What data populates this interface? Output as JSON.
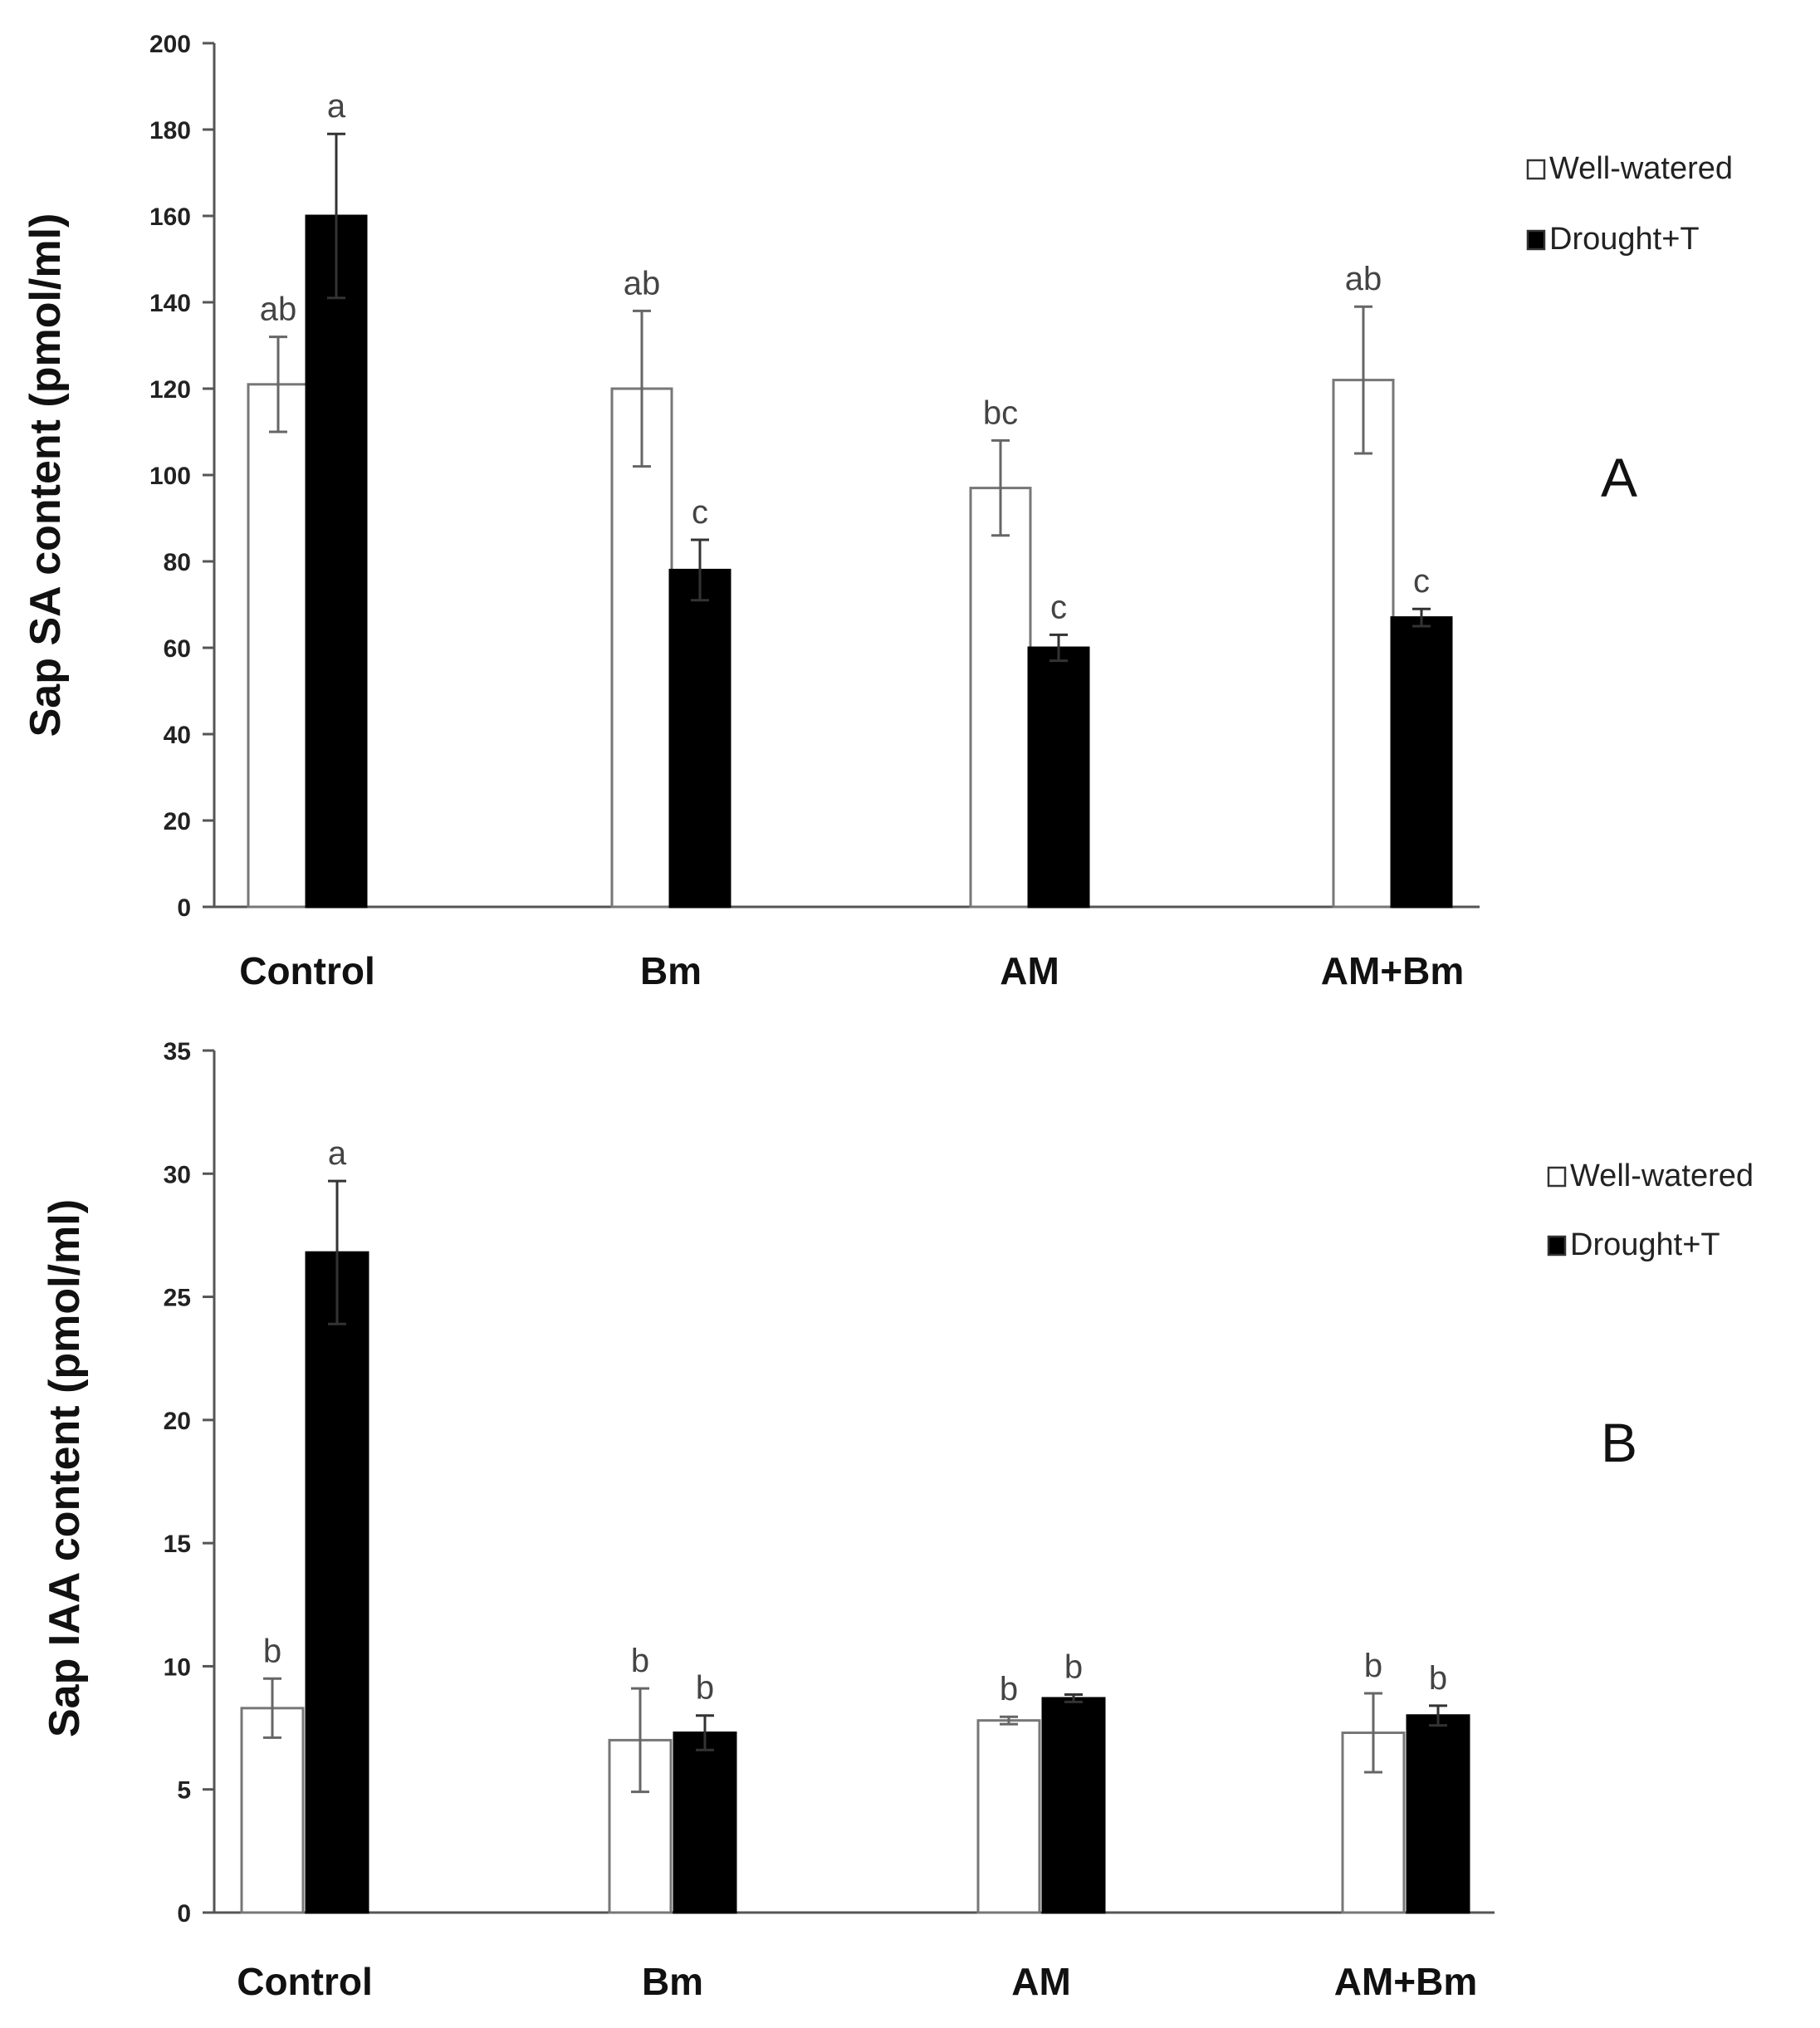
{
  "chart_data": [
    {
      "type": "bar",
      "panel_label": "A",
      "categories": [
        "Control",
        "Bm",
        "AM",
        "AM+Bm"
      ],
      "ylabel": "Sap SA content (pmol/ml)",
      "ylim": [
        0,
        200
      ],
      "yticks": [
        0,
        20,
        40,
        60,
        80,
        100,
        120,
        140,
        160,
        180,
        200
      ],
      "legend_position": "top-right",
      "series": [
        {
          "name": "Well-watered",
          "color": "#ffffff",
          "values": [
            121,
            120,
            97,
            122
          ],
          "errors": [
            11,
            18,
            11,
            17
          ],
          "letters": [
            "ab",
            "ab",
            "bc",
            "ab"
          ]
        },
        {
          "name": "Drought+T",
          "color": "#000000",
          "values": [
            160,
            78,
            60,
            67
          ],
          "errors": [
            19,
            7,
            3,
            2
          ],
          "letters": [
            "a",
            "c",
            "c",
            "c"
          ]
        }
      ]
    },
    {
      "type": "bar",
      "panel_label": "B",
      "categories": [
        "Control",
        "Bm",
        "AM",
        "AM+Bm"
      ],
      "ylabel": "Sap IAA content (pmol/ml)",
      "ylim": [
        0,
        35
      ],
      "yticks": [
        0,
        5,
        10,
        15,
        20,
        25,
        30,
        35
      ],
      "legend_position": "top-right",
      "series": [
        {
          "name": "Well-watered",
          "color": "#ffffff",
          "values": [
            8.3,
            7.0,
            7.8,
            7.3
          ],
          "errors": [
            1.2,
            2.1,
            0.15,
            1.6
          ],
          "letters": [
            "b",
            "b",
            "b",
            "b"
          ]
        },
        {
          "name": "Drought+T",
          "color": "#000000",
          "values": [
            26.8,
            7.3,
            8.7,
            8.0
          ],
          "errors": [
            2.9,
            0.7,
            0.15,
            0.4
          ],
          "letters": [
            "a",
            "b",
            "b",
            "b"
          ]
        }
      ]
    }
  ]
}
